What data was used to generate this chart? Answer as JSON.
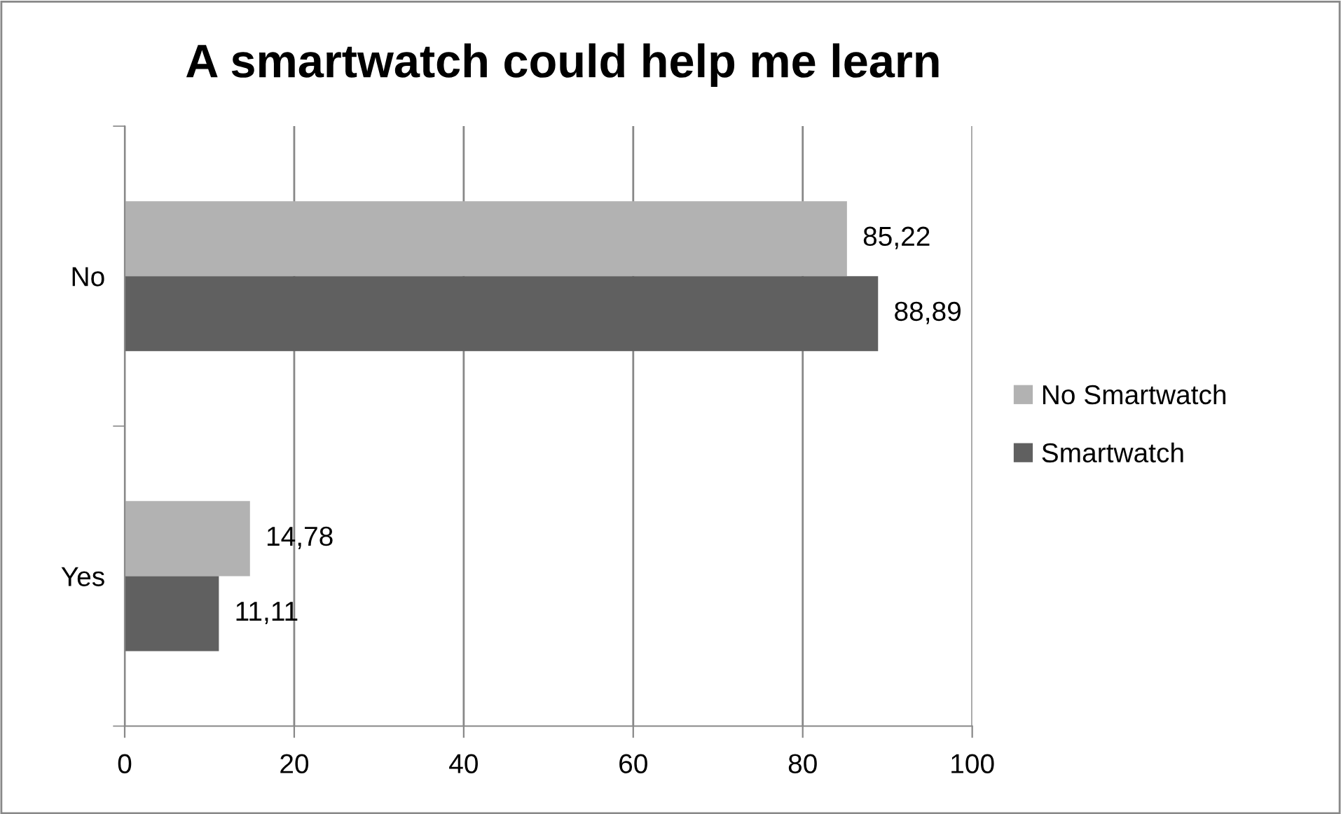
{
  "chart_data": {
    "type": "bar",
    "orientation": "horizontal",
    "title": "A smartwatch could help me learn",
    "categories": [
      "No",
      "Yes"
    ],
    "series": [
      {
        "name": "No Smartwatch",
        "color": "#b2b2b2",
        "values": [
          85.22,
          14.78
        ],
        "value_labels": [
          "85,22",
          "14,78"
        ]
      },
      {
        "name": "Smartwatch",
        "color": "#606060",
        "values": [
          88.89,
          11.11
        ],
        "value_labels": [
          "88,89",
          "11,11"
        ]
      }
    ],
    "xlim": [
      0,
      100
    ],
    "xticks": [
      0,
      20,
      40,
      60,
      80,
      100
    ],
    "grid": "x",
    "legend": "right"
  }
}
